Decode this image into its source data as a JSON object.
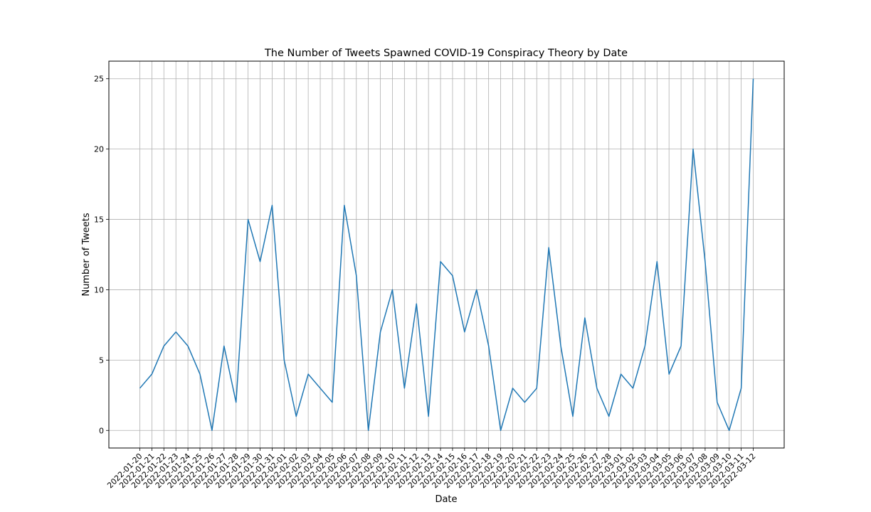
{
  "chart_data": {
    "type": "line",
    "title": "The Number of Tweets Spawned COVID-19 Conspiracy Theory by Date",
    "xlabel": "Date",
    "ylabel": "Number of Tweets",
    "x": [
      "2022-01-20",
      "2022-01-21",
      "2022-01-22",
      "2022-01-23",
      "2022-01-24",
      "2022-01-25",
      "2022-01-26",
      "2022-01-27",
      "2022-01-28",
      "2022-01-29",
      "2022-01-30",
      "2022-01-31",
      "2022-02-01",
      "2022-02-02",
      "2022-02-03",
      "2022-02-04",
      "2022-02-05",
      "2022-02-06",
      "2022-02-07",
      "2022-02-08",
      "2022-02-09",
      "2022-02-10",
      "2022-02-11",
      "2022-02-12",
      "2022-02-13",
      "2022-02-14",
      "2022-02-15",
      "2022-02-16",
      "2022-02-17",
      "2022-02-18",
      "2022-02-19",
      "2022-02-20",
      "2022-02-21",
      "2022-02-22",
      "2022-02-23",
      "2022-02-24",
      "2022-02-25",
      "2022-02-26",
      "2022-02-27",
      "2022-02-28",
      "2022-03-01",
      "2022-03-02",
      "2022-03-03",
      "2022-03-04",
      "2022-03-05",
      "2022-03-06",
      "2022-03-07",
      "2022-03-08",
      "2022-03-09",
      "2022-03-10",
      "2022-03-11",
      "2022-03-12"
    ],
    "series": [
      {
        "values": [
          3,
          4,
          6,
          7,
          6,
          4,
          0,
          6,
          2,
          15,
          12,
          16,
          5,
          1,
          4,
          3,
          2,
          16,
          11,
          0,
          7,
          10,
          3,
          9,
          1,
          12,
          11,
          7,
          10,
          6,
          0,
          3,
          2,
          3,
          13,
          6,
          1,
          8,
          3,
          1,
          4,
          3,
          6,
          12,
          4,
          6,
          20,
          12,
          2,
          0,
          3,
          25
        ],
        "color": "#1f77b4"
      }
    ],
    "ylim": [
      -1.25,
      26.25
    ],
    "yticks": [
      0,
      5,
      10,
      15,
      20,
      25
    ],
    "grid": true,
    "legend": "none"
  }
}
